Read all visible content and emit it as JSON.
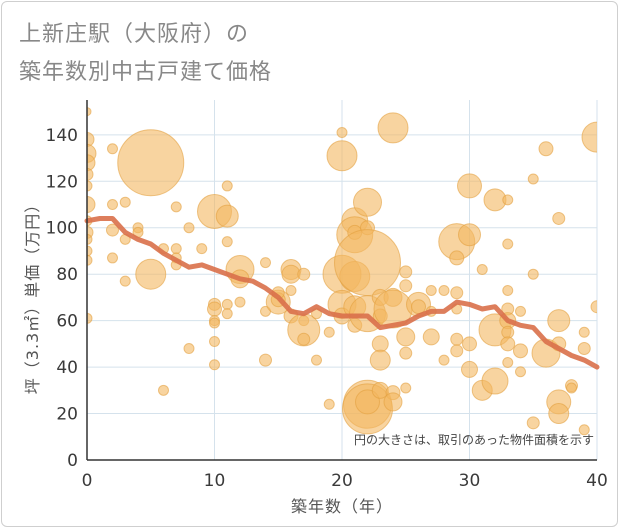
{
  "title_lines": [
    "上新庄駅（大阪府）の",
    "築年数別中古戸建て価格"
  ],
  "chart_data": {
    "type": "scatter",
    "title": "上新庄駅（大阪府）の築年数別中古戸建て価格",
    "xlabel": "築年数（年）",
    "ylabel": "坪（3.3㎡）単価（万円）",
    "annotation": "円の大きさは、取引のあった物件面積を示す",
    "xlim": [
      0,
      40
    ],
    "ylim": [
      0,
      155
    ],
    "xticks": [
      0,
      10,
      20,
      30,
      40
    ],
    "yticks": [
      0,
      20,
      40,
      60,
      80,
      100,
      120,
      140
    ],
    "grid": true,
    "colors": {
      "bubble_fill": "#f4b860",
      "bubble_stroke": "#e3a040",
      "trend": "#d9704a",
      "grid": "#d5e2ec",
      "axis_text": "#3a3a3a",
      "label_text": "#555555"
    },
    "points": [
      [
        0,
        150,
        4
      ],
      [
        0,
        138,
        7
      ],
      [
        0,
        132,
        9
      ],
      [
        0,
        128,
        8
      ],
      [
        0,
        123,
        6
      ],
      [
        0,
        118,
        5
      ],
      [
        0,
        110,
        8
      ],
      [
        0,
        103,
        5
      ],
      [
        0,
        98,
        6
      ],
      [
        0,
        95,
        5
      ],
      [
        0,
        90,
        5
      ],
      [
        0,
        86,
        5
      ],
      [
        0,
        61,
        5
      ],
      [
        2,
        134,
        5
      ],
      [
        2,
        110,
        5
      ],
      [
        2,
        99,
        6
      ],
      [
        2,
        87,
        5
      ],
      [
        3,
        111,
        5
      ],
      [
        3,
        95,
        5
      ],
      [
        3,
        77,
        5
      ],
      [
        4,
        100,
        5
      ],
      [
        4,
        98,
        5
      ],
      [
        5,
        128,
        33
      ],
      [
        5,
        80,
        15
      ],
      [
        6,
        30,
        5
      ],
      [
        6,
        91,
        5
      ],
      [
        7,
        109,
        5
      ],
      [
        7,
        91,
        5
      ],
      [
        7,
        87,
        5
      ],
      [
        7,
        84,
        5
      ],
      [
        8,
        100,
        5
      ],
      [
        8,
        48,
        5
      ],
      [
        9,
        91,
        5
      ],
      [
        10,
        107,
        17
      ],
      [
        10,
        67,
        6
      ],
      [
        10,
        65,
        7
      ],
      [
        10,
        60,
        5
      ],
      [
        10,
        59,
        5
      ],
      [
        10,
        51,
        5
      ],
      [
        10,
        41,
        5
      ],
      [
        11,
        118,
        5
      ],
      [
        11,
        105,
        11
      ],
      [
        11,
        94,
        5
      ],
      [
        11,
        67,
        5
      ],
      [
        11,
        63,
        5
      ],
      [
        12,
        82,
        14
      ],
      [
        12,
        78,
        9
      ],
      [
        12,
        68,
        5
      ],
      [
        14,
        64,
        5
      ],
      [
        14,
        85,
        5
      ],
      [
        14,
        43,
        6
      ],
      [
        15,
        68,
        12
      ],
      [
        15,
        69,
        7
      ],
      [
        15,
        72,
        6
      ],
      [
        16,
        73,
        5
      ],
      [
        16,
        82,
        10
      ],
      [
        16,
        80,
        9
      ],
      [
        16,
        62,
        7
      ],
      [
        17,
        80,
        6
      ],
      [
        17,
        60,
        5
      ],
      [
        17,
        56,
        16
      ],
      [
        17,
        52,
        6
      ],
      [
        18,
        63,
        5
      ],
      [
        18,
        43,
        5
      ],
      [
        19,
        24,
        5
      ],
      [
        19,
        55,
        5
      ],
      [
        20,
        141,
        5
      ],
      [
        20,
        131,
        15
      ],
      [
        20,
        80,
        19
      ],
      [
        20,
        67,
        14
      ],
      [
        20,
        62,
        8
      ],
      [
        21,
        103,
        13
      ],
      [
        21,
        97,
        18
      ],
      [
        21,
        79,
        15
      ],
      [
        21,
        66,
        11
      ],
      [
        21,
        58,
        7
      ],
      [
        21,
        98,
        7
      ],
      [
        22,
        111,
        14
      ],
      [
        22,
        100,
        7
      ],
      [
        22,
        85,
        33
      ],
      [
        22,
        63,
        18
      ],
      [
        22,
        24,
        24
      ],
      [
        22,
        22,
        25
      ],
      [
        22,
        25,
        12
      ],
      [
        23,
        70,
        8
      ],
      [
        23,
        62,
        7
      ],
      [
        23,
        50,
        8
      ],
      [
        23,
        43,
        10
      ],
      [
        23,
        30,
        8
      ],
      [
        24,
        143,
        15
      ],
      [
        24,
        70,
        9
      ],
      [
        24,
        65,
        19
      ],
      [
        24,
        29,
        7
      ],
      [
        24,
        25,
        9
      ],
      [
        25,
        81,
        6
      ],
      [
        25,
        75,
        6
      ],
      [
        25,
        53,
        9
      ],
      [
        25,
        46,
        6
      ],
      [
        25,
        31,
        5
      ],
      [
        26,
        67,
        12
      ],
      [
        26,
        66,
        7
      ],
      [
        27,
        64,
        5
      ],
      [
        27,
        73,
        5
      ],
      [
        27,
        53,
        8
      ],
      [
        28,
        43,
        5
      ],
      [
        28,
        73,
        5
      ],
      [
        29,
        94,
        18
      ],
      [
        29,
        87,
        7
      ],
      [
        29,
        72,
        6
      ],
      [
        29,
        65,
        5
      ],
      [
        29,
        52,
        6
      ],
      [
        29,
        47,
        6
      ],
      [
        30,
        118,
        12
      ],
      [
        30,
        97,
        11
      ],
      [
        30,
        50,
        7
      ],
      [
        30,
        39,
        8
      ],
      [
        31,
        82,
        5
      ],
      [
        31,
        30,
        10
      ],
      [
        32,
        112,
        11
      ],
      [
        32,
        56,
        16
      ],
      [
        32,
        34,
        13
      ],
      [
        33,
        112,
        5
      ],
      [
        33,
        93,
        5
      ],
      [
        33,
        73,
        5
      ],
      [
        33,
        65,
        6
      ],
      [
        33,
        60,
        8
      ],
      [
        33,
        55,
        6
      ],
      [
        33,
        50,
        7
      ],
      [
        33,
        42,
        5
      ],
      [
        34,
        64,
        5
      ],
      [
        34,
        47,
        7
      ],
      [
        34,
        38,
        5
      ],
      [
        35,
        121,
        5
      ],
      [
        35,
        80,
        5
      ],
      [
        35,
        16,
        6
      ],
      [
        36,
        134,
        7
      ],
      [
        36,
        46,
        14
      ],
      [
        37,
        104,
        6
      ],
      [
        37,
        60,
        11
      ],
      [
        37,
        50,
        7
      ],
      [
        37,
        25,
        12
      ],
      [
        37,
        20,
        10
      ],
      [
        38,
        32,
        6
      ],
      [
        38,
        31,
        5
      ],
      [
        39,
        55,
        5
      ],
      [
        39,
        48,
        6
      ],
      [
        39,
        13,
        5
      ],
      [
        40,
        139,
        15
      ],
      [
        40,
        66,
        6
      ]
    ],
    "trend_line": {
      "x": [
        0,
        1,
        2,
        3,
        4,
        5,
        6,
        7,
        8,
        9,
        10,
        11,
        12,
        13,
        14,
        15,
        16,
        17,
        18,
        19,
        20,
        21,
        22,
        23,
        24,
        25,
        26,
        27,
        28,
        29,
        30,
        31,
        32,
        33,
        34,
        35,
        36,
        37,
        38,
        39,
        40
      ],
      "y": [
        103,
        104,
        104,
        98,
        95,
        93,
        89,
        86,
        83,
        84,
        82,
        80,
        78,
        77,
        74,
        70,
        64,
        63,
        66,
        63,
        62,
        62,
        62,
        57,
        58,
        59,
        62,
        64,
        64,
        68,
        67,
        65,
        66,
        60,
        58,
        57,
        51,
        48,
        45,
        43,
        40
      ]
    }
  }
}
